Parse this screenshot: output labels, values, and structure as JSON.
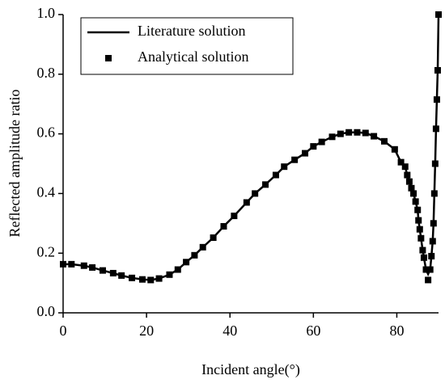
{
  "chart_data": {
    "type": "line_scatter",
    "xlabel": "Incident angle(°)",
    "ylabel": "Reflected amplitude ratio",
    "x": [
      0,
      2,
      5,
      7,
      9.5,
      12,
      14,
      16.5,
      19,
      21,
      23,
      25.5,
      27.5,
      29.5,
      31.5,
      33.5,
      36,
      38.5,
      41,
      44,
      46,
      48.5,
      51,
      53,
      55.5,
      58,
      60,
      62,
      64.5,
      66.5,
      68.5,
      70.5,
      72.5,
      74.5,
      77,
      79.5,
      81,
      82,
      82.5,
      83,
      83.5,
      84,
      84.5,
      85,
      85.2,
      85.5,
      85.8,
      86.2,
      86.5,
      87,
      87.5,
      88,
      88.3,
      88.6,
      88.8,
      89,
      89.2,
      89.4,
      89.6,
      89.8,
      90
    ],
    "series": [
      {
        "name": "Literature solution",
        "color": "#000000",
        "style": "line",
        "values": [
          0.163,
          0.163,
          0.158,
          0.152,
          0.142,
          0.133,
          0.125,
          0.117,
          0.112,
          0.11,
          0.115,
          0.128,
          0.145,
          0.17,
          0.193,
          0.22,
          0.252,
          0.29,
          0.325,
          0.37,
          0.4,
          0.43,
          0.462,
          0.49,
          0.513,
          0.535,
          0.558,
          0.573,
          0.59,
          0.6,
          0.605,
          0.605,
          0.603,
          0.592,
          0.575,
          0.548,
          0.505,
          0.49,
          0.462,
          0.44,
          0.418,
          0.4,
          0.373,
          0.345,
          0.31,
          0.28,
          0.25,
          0.21,
          0.185,
          0.145,
          0.13,
          0.145,
          0.19,
          0.24,
          0.3,
          0.4,
          0.5,
          0.617,
          0.715,
          0.813,
          1.0
        ]
      },
      {
        "name": "Analytical solution",
        "color": "#000000",
        "style": "marker",
        "values": [
          0.163,
          0.163,
          0.158,
          0.152,
          0.142,
          0.133,
          0.125,
          0.117,
          0.112,
          0.11,
          0.115,
          0.128,
          0.145,
          0.17,
          0.193,
          0.22,
          0.252,
          0.29,
          0.325,
          0.37,
          0.4,
          0.43,
          0.462,
          0.49,
          0.513,
          0.535,
          0.558,
          0.573,
          0.59,
          0.6,
          0.605,
          0.605,
          0.603,
          0.592,
          0.575,
          0.548,
          0.505,
          0.49,
          0.462,
          0.44,
          0.418,
          0.4,
          0.373,
          0.345,
          0.31,
          0.28,
          0.25,
          0.21,
          0.185,
          0.145,
          0.11,
          0.145,
          0.19,
          0.24,
          0.3,
          0.4,
          0.5,
          0.617,
          0.715,
          0.813,
          1.0
        ]
      }
    ],
    "xlim": [
      0,
      90
    ],
    "xticks": [
      0,
      20,
      40,
      60,
      80
    ],
    "ylim": [
      0,
      1
    ],
    "yticks": [
      {
        "value": 0,
        "label": "0.0"
      },
      0.2,
      0.4,
      0.6,
      0.8,
      {
        "value": 1,
        "label": "1.0"
      }
    ],
    "legend": "upper left"
  }
}
